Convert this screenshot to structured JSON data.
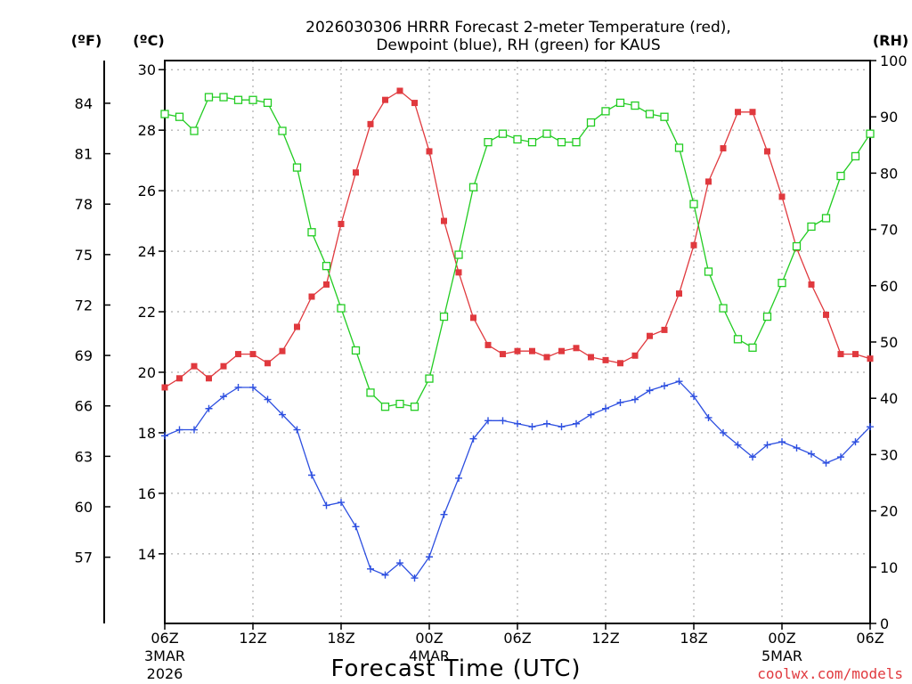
{
  "chart_data": {
    "type": "line",
    "title_line1": "2026030306 HRRR Forecast 2-meter Temperature (red),",
    "title_line2": "Dewpoint (blue), RH (green) for KAUS",
    "xlabel": "Forecast Time (UTC)",
    "credit": "coolwx.com/models",
    "credit_color": "#e0393e",
    "axes": {
      "celsius": {
        "label": "(ºC)",
        "ylim": [
          11.7,
          30.3
        ],
        "ticks": [
          14,
          16,
          18,
          20,
          22,
          24,
          26,
          28,
          30
        ]
      },
      "fahrenheit": {
        "label": "(ºF)",
        "ticks": [
          57,
          60,
          63,
          66,
          69,
          72,
          75,
          78,
          81,
          84
        ]
      },
      "rh": {
        "label": "(RH)",
        "ylim": [
          0,
          100
        ],
        "ticks": [
          0,
          10,
          20,
          30,
          40,
          50,
          60,
          70,
          80,
          90,
          100
        ]
      }
    },
    "x_hours_range": [
      0,
      48
    ],
    "x_ticks": [
      {
        "hour": 0,
        "label": "06Z",
        "sub1": "3MAR",
        "sub2": "2026"
      },
      {
        "hour": 6,
        "label": "12Z",
        "sub1": "",
        "sub2": ""
      },
      {
        "hour": 12,
        "label": "18Z",
        "sub1": "",
        "sub2": ""
      },
      {
        "hour": 18,
        "label": "00Z",
        "sub1": "4MAR",
        "sub2": ""
      },
      {
        "hour": 24,
        "label": "06Z",
        "sub1": "",
        "sub2": ""
      },
      {
        "hour": 30,
        "label": "12Z",
        "sub1": "",
        "sub2": ""
      },
      {
        "hour": 36,
        "label": "18Z",
        "sub1": "",
        "sub2": ""
      },
      {
        "hour": 42,
        "label": "00Z",
        "sub1": "5MAR",
        "sub2": ""
      },
      {
        "hour": 48,
        "label": "06Z",
        "sub1": "",
        "sub2": ""
      }
    ],
    "series": [
      {
        "name": "Temperature",
        "color": "#e0393e",
        "marker": "filled-square",
        "axis": "celsius",
        "values": [
          19.5,
          19.8,
          20.2,
          19.8,
          20.2,
          20.6,
          20.6,
          20.3,
          20.7,
          21.5,
          22.5,
          22.9,
          24.9,
          26.6,
          28.2,
          29.0,
          29.3,
          28.9,
          27.3,
          25.0,
          23.3,
          21.8,
          20.9,
          20.6,
          20.7,
          20.7,
          20.5,
          20.7,
          20.8,
          20.5,
          20.4,
          20.3,
          20.55,
          21.2,
          21.4,
          22.6,
          24.2,
          26.3,
          27.4,
          28.6,
          28.6,
          27.3,
          25.8,
          24.1,
          22.9,
          21.9,
          20.6,
          20.6,
          20.45
        ]
      },
      {
        "name": "Dewpoint",
        "color": "#2d4fe0",
        "marker": "plus",
        "axis": "celsius",
        "values": [
          17.9,
          18.1,
          18.1,
          18.8,
          19.2,
          19.5,
          19.5,
          19.1,
          18.6,
          18.1,
          16.6,
          15.6,
          15.7,
          14.9,
          13.5,
          13.3,
          13.7,
          13.2,
          13.9,
          15.3,
          16.5,
          17.8,
          18.4,
          18.4,
          18.3,
          18.2,
          18.3,
          18.2,
          18.3,
          18.6,
          18.8,
          19.0,
          19.1,
          19.4,
          19.55,
          19.7,
          19.2,
          18.5,
          18.0,
          17.6,
          17.2,
          17.6,
          17.7,
          17.5,
          17.3,
          17.0,
          17.2,
          17.7,
          18.2
        ]
      },
      {
        "name": "RH",
        "color": "#22cc22",
        "marker": "open-square",
        "axis": "rh",
        "values": [
          90.5,
          90.0,
          87.5,
          93.5,
          93.5,
          93.0,
          93.0,
          92.5,
          87.5,
          81.0,
          69.5,
          63.5,
          56.0,
          48.5,
          41.0,
          38.5,
          39.0,
          38.5,
          43.5,
          54.5,
          65.5,
          77.5,
          85.5,
          87.0,
          86.0,
          85.5,
          87.0,
          85.5,
          85.5,
          89.0,
          91.0,
          92.5,
          92.0,
          90.5,
          90.0,
          84.5,
          74.5,
          62.5,
          56.0,
          50.5,
          49.0,
          54.5,
          60.5,
          67.0,
          70.5,
          72.0,
          79.5,
          83.0,
          87.0
        ]
      }
    ]
  }
}
